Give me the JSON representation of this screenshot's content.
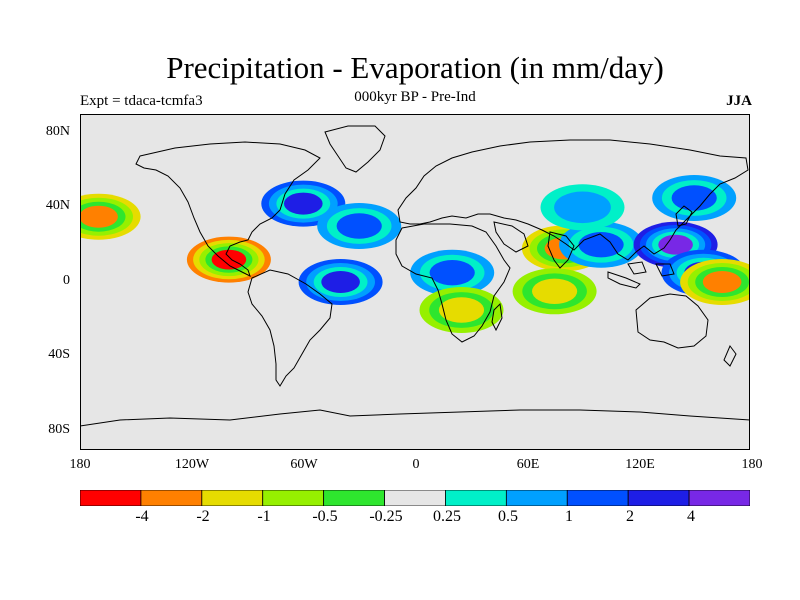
{
  "title": "Precipitation - Evaporation (in mm/day)",
  "subtitle": "000kyr BP - Pre-Ind",
  "expt": "Expt = tdaca-tcmfa3",
  "season": "JJA",
  "lat_labels": [
    "80N",
    "40N",
    "0",
    "40S",
    "80S"
  ],
  "lon_labels": [
    "180",
    "120W",
    "60W",
    "0",
    "60E",
    "120E",
    "180"
  ],
  "colorbar": {
    "colors": [
      "#ff0000",
      "#ff8000",
      "#e6dc00",
      "#96f000",
      "#2ee62e",
      "#e6e6e6",
      "#00f0c8",
      "#00a0ff",
      "#0050ff",
      "#1e1ee6",
      "#7828e6"
    ],
    "labels": [
      "-4",
      "-2",
      "-1",
      "-0.5",
      "-0.25",
      "0.25",
      "0.5",
      "1",
      "2",
      "4"
    ]
  },
  "chart_data": {
    "type": "heatmap",
    "variable": "Precipitation - Evaporation",
    "units": "mm/day",
    "season": "JJA",
    "experiment": "tdaca-tcmfa3",
    "period": "000kyr BP - Pre-Ind",
    "lon_range": [
      -180,
      180
    ],
    "lat_range": [
      -90,
      90
    ],
    "contour_levels": [
      -4,
      -2,
      -1,
      -0.5,
      -0.25,
      0.25,
      0.5,
      1,
      2,
      4
    ],
    "features": [
      {
        "lon": -100,
        "lat": 12,
        "value": -4
      },
      {
        "lon": -170,
        "lat": 35,
        "value": -2
      },
      {
        "lon": -60,
        "lat": 42,
        "value": 2
      },
      {
        "lon": -30,
        "lat": 30,
        "value": 1
      },
      {
        "lon": -40,
        "lat": 0,
        "value": 2
      },
      {
        "lon": 20,
        "lat": 5,
        "value": 1
      },
      {
        "lon": 25,
        "lat": -15,
        "value": -1
      },
      {
        "lon": 80,
        "lat": 18,
        "value": -2
      },
      {
        "lon": 100,
        "lat": 20,
        "value": 1
      },
      {
        "lon": 140,
        "lat": 20,
        "value": 4
      },
      {
        "lon": 155,
        "lat": 5,
        "value": 2
      },
      {
        "lon": 165,
        "lat": 0,
        "value": -2
      },
      {
        "lon": 75,
        "lat": -5,
        "value": -1
      },
      {
        "lon": 150,
        "lat": 45,
        "value": 1
      },
      {
        "lon": 90,
        "lat": 40,
        "value": 0.5
      }
    ]
  }
}
